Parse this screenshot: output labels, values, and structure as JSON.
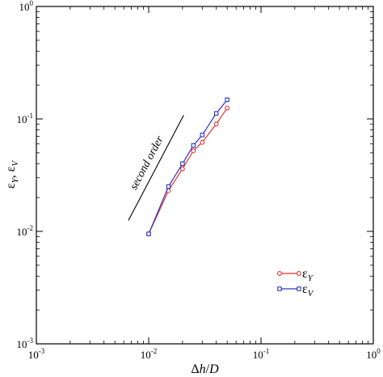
{
  "chart_data": {
    "type": "line",
    "x_scale": "log",
    "y_scale": "log",
    "xlim": [
      0.001,
      1
    ],
    "ylim": [
      0.001,
      1
    ],
    "grid": false,
    "legend_position": "lower-right",
    "colors": {
      "eps_y": "#e8302e",
      "eps_v": "#2b35c8",
      "reference": "#000000"
    },
    "xlabel": {
      "prefix": "Δ",
      "var1": "h",
      "sep": "/",
      "var2": "D"
    },
    "ylabel": {
      "s1_base": "ε",
      "s1_sub": "Y",
      "sep": ", ",
      "s2_base": "ε",
      "s2_sub": "V"
    },
    "xticks": [
      {
        "value": 0.001,
        "base": "10",
        "exp": "-3"
      },
      {
        "value": 0.01,
        "base": "10",
        "exp": "-2"
      },
      {
        "value": 0.1,
        "base": "10",
        "exp": "-1"
      },
      {
        "value": 1,
        "base": "10",
        "exp": "0"
      }
    ],
    "yticks": [
      {
        "value": 0.001,
        "base": "10",
        "exp": "-3"
      },
      {
        "value": 0.01,
        "base": "10",
        "exp": "-2"
      },
      {
        "value": 0.1,
        "base": "10",
        "exp": "-1"
      },
      {
        "value": 1,
        "base": "10",
        "exp": "0"
      }
    ],
    "series": [
      {
        "key": "eps_y",
        "legend_base": "ε",
        "legend_sub": "Y",
        "marker": "circle",
        "x": [
          0.01,
          0.015,
          0.02,
          0.025,
          0.03,
          0.04,
          0.05
        ],
        "y": [
          0.0095,
          0.023,
          0.036,
          0.052,
          0.062,
          0.09,
          0.125
        ]
      },
      {
        "key": "eps_v",
        "legend_base": "ε",
        "legend_sub": "V",
        "marker": "square",
        "x": [
          0.01,
          0.015,
          0.02,
          0.025,
          0.03,
          0.04,
          0.05
        ],
        "y": [
          0.0095,
          0.025,
          0.04,
          0.058,
          0.072,
          0.112,
          0.148
        ]
      }
    ],
    "reference_line": {
      "label": "second order",
      "x": [
        0.0066,
        0.0205
      ],
      "y": [
        0.0125,
        0.108
      ]
    }
  }
}
